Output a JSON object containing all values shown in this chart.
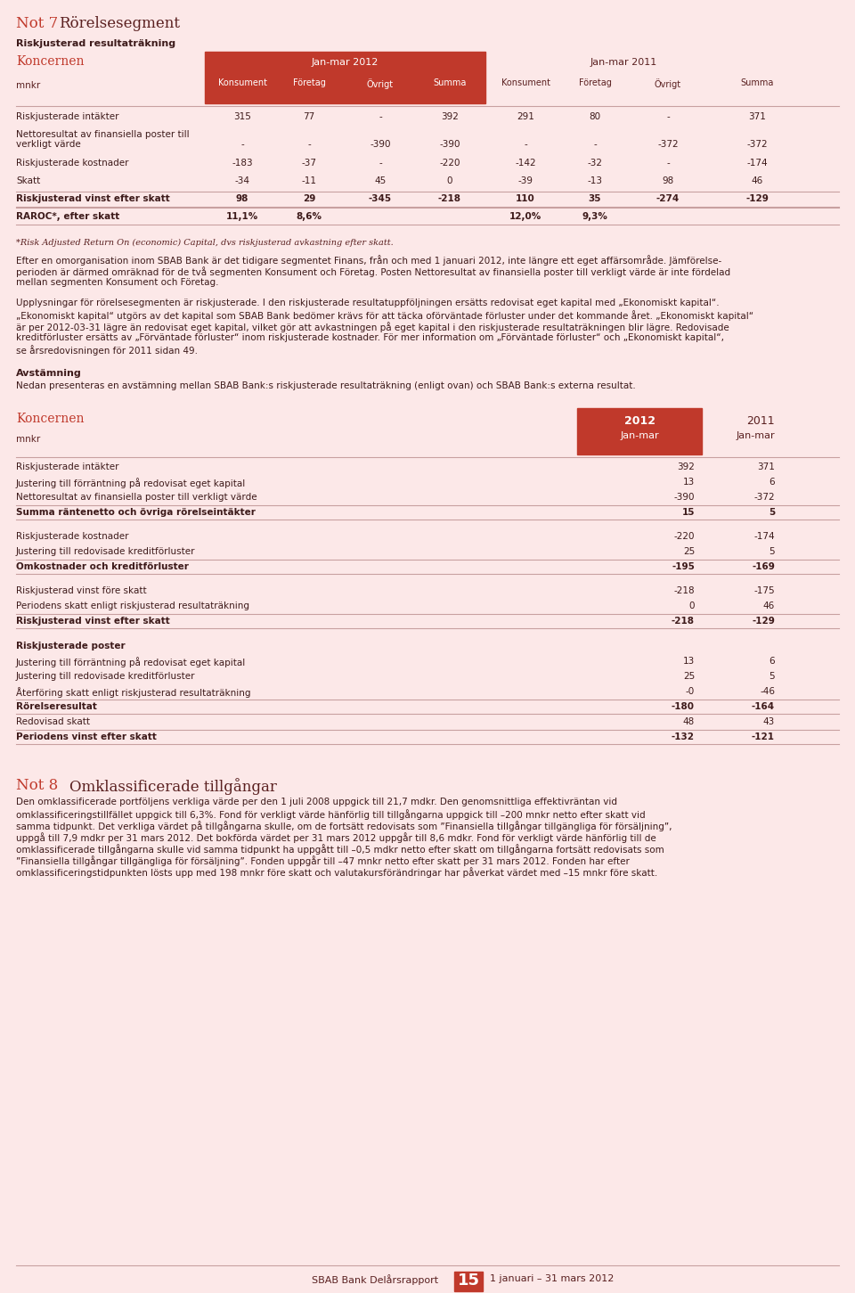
{
  "bg_color": "#fce8e8",
  "red_color": "#c0392b",
  "text_color": "#5a2020",
  "dark_col": "#3d1a1a",
  "line_color": "#c8a0a0",
  "title_not": "Not 7",
  "title_main": "Rörelsesegment",
  "section1_title": "Riskjusterad resultaträkning",
  "koncernen_label": "Koncernen",
  "mnkr_label": "mnkr",
  "jan_mar_2012": "Jan-mar 2012",
  "jan_mar_2011": "Jan-mar 2011",
  "col_headers": [
    "Konsument",
    "Företag",
    "Övrigt",
    "Summa"
  ],
  "table1_rows": [
    {
      "label": "Riskjusterade intäkter",
      "bold": false,
      "multiline": false,
      "v2012": [
        "315",
        "77",
        "-",
        "392"
      ],
      "v2011": [
        "291",
        "80",
        "-",
        "371"
      ]
    },
    {
      "label": "Nettoresultat av finansiella poster till\n  verkligt värde",
      "bold": false,
      "multiline": true,
      "v2012": [
        "-",
        "-",
        "-390",
        "-390"
      ],
      "v2011": [
        "-",
        "-",
        "-372",
        "-372"
      ]
    },
    {
      "label": "Riskjusterade kostnader",
      "bold": false,
      "multiline": false,
      "v2012": [
        "-183",
        "-37",
        "-",
        "-220"
      ],
      "v2011": [
        "-142",
        "-32",
        "-",
        "-174"
      ]
    },
    {
      "label": "Skatt",
      "bold": false,
      "multiline": false,
      "v2012": [
        "-34",
        "-11",
        "45",
        "0"
      ],
      "v2011": [
        "-39",
        "-13",
        "98",
        "46"
      ]
    },
    {
      "label": "Riskjusterad vinst efter skatt",
      "bold": true,
      "multiline": false,
      "v2012": [
        "98",
        "29",
        "-345",
        "-218"
      ],
      "v2011": [
        "110",
        "35",
        "-274",
        "-129"
      ]
    },
    {
      "label": "RAROC*, efter skatt",
      "bold": true,
      "multiline": false,
      "v2012": [
        "11,1%",
        "8,6%",
        "",
        ""
      ],
      "v2011": [
        "12,0%",
        "9,3%",
        "",
        ""
      ]
    }
  ],
  "footnote1": "*Risk Adjusted Return On (economic) Capital, dvs riskjusterad avkastning efter skatt.",
  "para1_lines": [
    "Efter en omorganisation inom SBAB Bank är det tidigare segmentet Finans, från och med 1 januari 2012, inte längre ett eget affärsområde. Jämförelse-",
    "perioden är därmed omräknad för de två segmenten Konsument och Företag. Posten Nettoresultat av finansiella poster till verkligt värde är inte fördelad",
    "mellan segmenten Konsument och Företag."
  ],
  "para2_lines": [
    "Upplysningar för rörelsesegmenten är riskjusterade. I den riskjusterade resultatuppföljningen ersätts redovisat eget kapital med „Ekonomiskt kapital“.",
    "„Ekonomiskt kapital“ utgörs av det kapital som SBAB Bank bedömer krävs för att täcka oförväntade förluster under det kommande året. „Ekonomiskt kapital“",
    "är per 2012-03-31 lägre än redovisat eget kapital, vilket gör att avkastningen på eget kapital i den riskjusterade resultaträkningen blir lägre. Redovisade",
    "kreditförluster ersätts av „Förväntade förluster“ inom riskjusterade kostnader. För mer information om „Förväntade förluster“ och „Ekonomiskt kapital“,",
    "se årsredovisningen för 2011 sidan 49."
  ],
  "avstamning_title": "Avstämning",
  "avstamning_para": "Nedan presenteras en avstämning mellan SBAB Bank:s riskjusterade resultaträkning (enligt ovan) och SBAB Bank:s externa resultat.",
  "table2_rows": [
    {
      "label": "Riskjusterade intäkter",
      "bold": false,
      "type": "normal",
      "v2012": "392",
      "v2011": "371"
    },
    {
      "label": "Justering till förräntning på redovisat eget kapital",
      "bold": false,
      "type": "normal",
      "v2012": "13",
      "v2011": "6"
    },
    {
      "label": "Nettoresultat av finansiella poster till verkligt värde",
      "bold": false,
      "type": "normal",
      "v2012": "-390",
      "v2011": "-372"
    },
    {
      "label": "Summa räntenetto och övriga rörelseintäkter",
      "bold": true,
      "type": "subtotal",
      "v2012": "15",
      "v2011": "5"
    },
    {
      "label": "",
      "bold": false,
      "type": "spacer",
      "v2012": "",
      "v2011": ""
    },
    {
      "label": "Riskjusterade kostnader",
      "bold": false,
      "type": "normal",
      "v2012": "-220",
      "v2011": "-174"
    },
    {
      "label": "Justering till redovisade kreditförluster",
      "bold": false,
      "type": "normal",
      "v2012": "25",
      "v2011": "5"
    },
    {
      "label": "Omkostnader och kreditförluster",
      "bold": true,
      "type": "subtotal",
      "v2012": "-195",
      "v2011": "-169"
    },
    {
      "label": "",
      "bold": false,
      "type": "spacer",
      "v2012": "",
      "v2011": ""
    },
    {
      "label": "Riskjusterad vinst före skatt",
      "bold": false,
      "type": "normal",
      "v2012": "-218",
      "v2011": "-175"
    },
    {
      "label": "Periodens skatt enligt riskjusterad resultaträkning",
      "bold": false,
      "type": "normal",
      "v2012": "0",
      "v2011": "46"
    },
    {
      "label": "Riskjusterad vinst efter skatt",
      "bold": true,
      "type": "subtotal",
      "v2012": "-218",
      "v2011": "-129"
    },
    {
      "label": "",
      "bold": false,
      "type": "spacer",
      "v2012": "",
      "v2011": ""
    },
    {
      "label": "Riskjusterade poster",
      "bold": true,
      "type": "section_header",
      "v2012": "",
      "v2011": ""
    },
    {
      "label": "Justering till förräntning på redovisat eget kapital",
      "bold": false,
      "type": "normal",
      "v2012": "13",
      "v2011": "6"
    },
    {
      "label": "Justering till redovisade kreditförluster",
      "bold": false,
      "type": "normal",
      "v2012": "25",
      "v2011": "5"
    },
    {
      "label": "Återföring skatt enligt riskjusterad resultaträkning",
      "bold": false,
      "type": "normal",
      "v2012": "-0",
      "v2011": "-46"
    },
    {
      "label": "Rörelseresultat",
      "bold": true,
      "type": "subtotal",
      "v2012": "-180",
      "v2011": "-164"
    },
    {
      "label": "Redovisad skatt",
      "bold": false,
      "type": "normal",
      "v2012": "48",
      "v2011": "43"
    },
    {
      "label": "Periodens vinst efter skatt",
      "bold": true,
      "type": "subtotal",
      "v2012": "-132",
      "v2011": "-121"
    }
  ],
  "not8_title": "Not 8",
  "not8_subtitle": "Omklassificerade tillgångar",
  "not8_para_lines": [
    "Den omklassificerade portföljens verkliga värde per den 1 juli 2008 uppgick till 21,7 mdkr. Den genomsnittliga effektivräntan vid",
    "omklassificeringstillfället uppgick till 6,3%. Fond för verkligt värde hänförlig till tillgångarna uppgick till –200 mnkr netto efter skatt vid",
    "samma tidpunkt. Det verkliga värdet på tillgångarna skulle, om de fortsätt redovisats som ”Finansiella tillgångar tillgängliga för försäljning”,",
    "uppgå till 7,9 mdkr per 31 mars 2012. Det bokförda värdet per 31 mars 2012 uppgår till 8,6 mdkr. Fond för verkligt värde hänförlig till de",
    "omklassificerade tillgångarna skulle vid samma tidpunkt ha uppgått till –0,5 mdkr netto efter skatt om tillgångarna fortsätt redovisats som",
    "”Finansiella tillgångar tillgängliga för försäljning”. Fonden uppgår till –47 mnkr netto efter skatt per 31 mars 2012. Fonden har efter",
    "omklassificeringstidpunkten lösts upp med 198 mnkr före skatt och valutakursförändringar har påverkat värdet med –15 mnkr före skatt."
  ],
  "footer_text": "SBAB Bank Delårsrapport",
  "footer_num": "15",
  "footer_date": "1 januari – 31 mars 2012"
}
